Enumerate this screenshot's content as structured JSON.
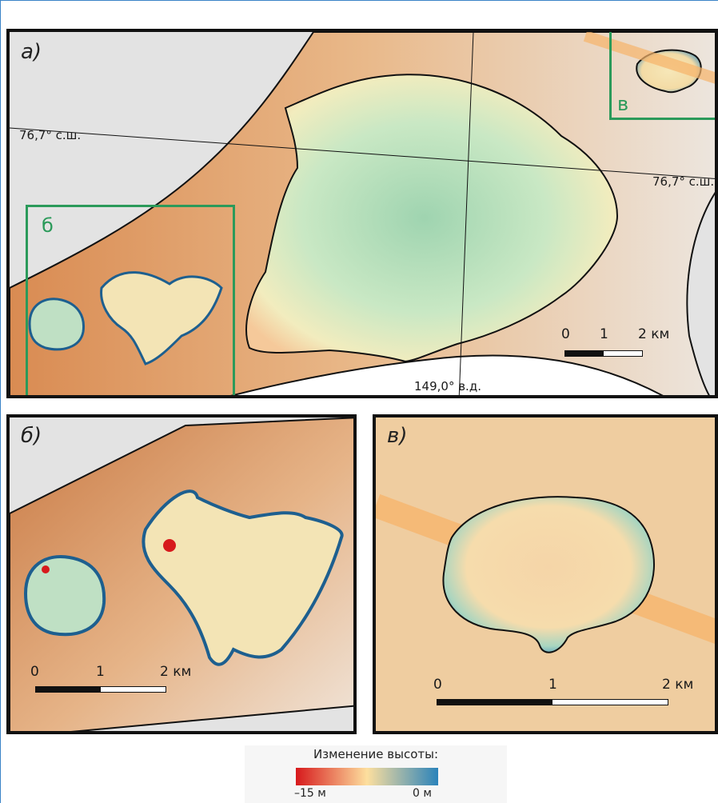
{
  "panel_a": {
    "label": "а)",
    "lat_label_left": "76,7° с.ш.",
    "lat_label_right": "76,7° с.ш.",
    "lon_label": "149,0° в.д.",
    "scale": {
      "t0": "0",
      "t1": "1",
      "t2": "2 км"
    },
    "inset_b": "б",
    "inset_v": "в"
  },
  "panel_b": {
    "label": "б)",
    "scale": {
      "t0": "0",
      "t1": "1",
      "t2": "2 км"
    }
  },
  "panel_v": {
    "label": "в)",
    "scale": {
      "t0": "0",
      "t1": "1",
      "t2": "2 км"
    }
  },
  "legend": {
    "title": "Изменение высоты:",
    "min": "–15 м",
    "max": "0 м",
    "colors": [
      "#d7191c",
      "#fddf9e",
      "#2b83ba"
    ]
  }
}
